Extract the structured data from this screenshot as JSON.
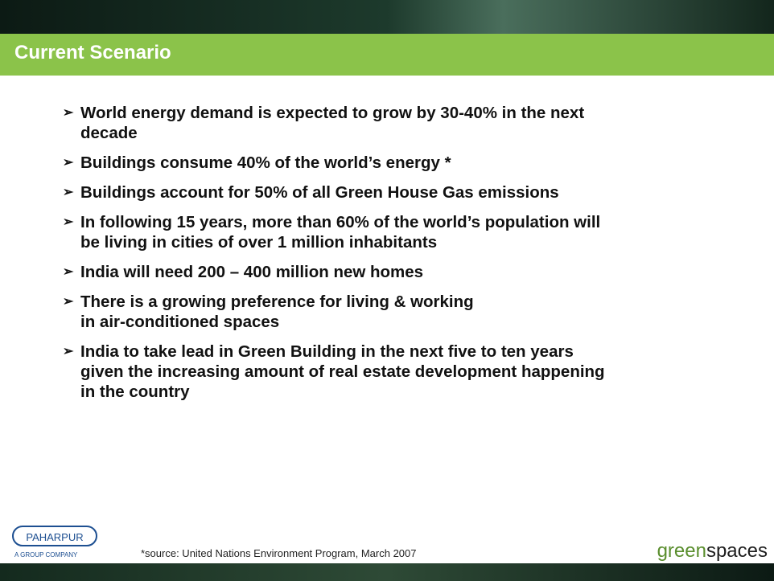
{
  "header": {
    "title": "Current Scenario"
  },
  "bullets": [
    [
      "World energy demand is expected to grow by 30-40% in the next",
      "decade"
    ],
    [
      "Buildings consume 40% of the world’s energy *"
    ],
    [
      "Buildings account for 50% of all Green House Gas emissions"
    ],
    [
      "In  following 15 years, more than 60% of the world’s population will",
      "be living in cities of over 1 million inhabitants"
    ],
    [
      "India will need 200 – 400 million new homes"
    ],
    [
      "There is a growing preference for living & working",
      "in air-conditioned spaces"
    ],
    [
      "India to take lead in Green Building in  the next five to ten years",
      "given the increasing amount of real estate development happening",
      "in the country"
    ]
  ],
  "footer": {
    "logo": "PAHARPUR",
    "logo_tagline": "A GROUP COMPANY",
    "source": "*source: United Nations Environment Program, March 2007",
    "brand_light": "green",
    "brand_bold": "spaces"
  }
}
